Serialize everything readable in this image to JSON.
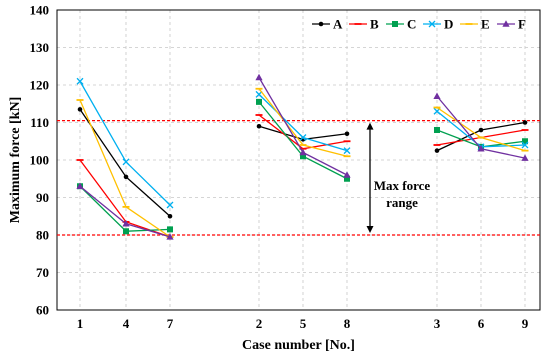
{
  "chart_data": {
    "type": "line",
    "xlabel": "Case number [No.]",
    "ylabel": "Maximum force [kN]",
    "ylim": [
      60,
      140
    ],
    "yticks": [
      60,
      70,
      80,
      90,
      100,
      110,
      120,
      130,
      140
    ],
    "grid": true,
    "legend_position": "top-right",
    "groups": [
      {
        "categories": [
          "1",
          "4",
          "7"
        ]
      },
      {
        "categories": [
          "2",
          "5",
          "8"
        ]
      },
      {
        "categories": [
          "3",
          "6",
          "9"
        ]
      }
    ],
    "series": [
      {
        "name": "A",
        "color": "#000000",
        "marker": "circle",
        "groups": [
          [
            113.5,
            95.5,
            85.0
          ],
          [
            109.0,
            105.5,
            107.0
          ],
          [
            102.5,
            108.0,
            110.0
          ]
        ]
      },
      {
        "name": "B",
        "color": "#ff0000",
        "marker": "dash",
        "groups": [
          [
            100.0,
            83.5,
            79.5
          ],
          [
            112.0,
            103.0,
            105.0
          ],
          [
            104.0,
            106.0,
            108.0
          ]
        ]
      },
      {
        "name": "C",
        "color": "#00a050",
        "marker": "square",
        "groups": [
          [
            93.0,
            81.0,
            81.5
          ],
          [
            115.5,
            101.0,
            95.0
          ],
          [
            108.0,
            103.5,
            105.0
          ]
        ]
      },
      {
        "name": "D",
        "color": "#00b0f0",
        "marker": "x",
        "groups": [
          [
            121.0,
            99.5,
            88.0
          ],
          [
            117.5,
            106.0,
            102.5
          ],
          [
            113.0,
            103.5,
            104.0
          ]
        ]
      },
      {
        "name": "E",
        "color": "#ffc000",
        "marker": "dash",
        "groups": [
          [
            116.0,
            87.5,
            79.5
          ],
          [
            119.0,
            104.0,
            101.0
          ],
          [
            114.0,
            106.0,
            102.5
          ]
        ]
      },
      {
        "name": "F",
        "color": "#7030a0",
        "marker": "triangle",
        "groups": [
          [
            93.0,
            83.0,
            79.5
          ],
          [
            122.0,
            102.0,
            96.0
          ],
          [
            117.0,
            103.0,
            100.5
          ]
        ]
      }
    ],
    "reference_lines": [
      {
        "y": 110.5,
        "color": "#ff0000",
        "style": "dashed"
      },
      {
        "y": 80.0,
        "color": "#ff0000",
        "style": "dashed"
      }
    ],
    "annotation": {
      "text_line1": "Max force",
      "text_line2": "range",
      "from": 80.0,
      "to": 110.5
    }
  }
}
